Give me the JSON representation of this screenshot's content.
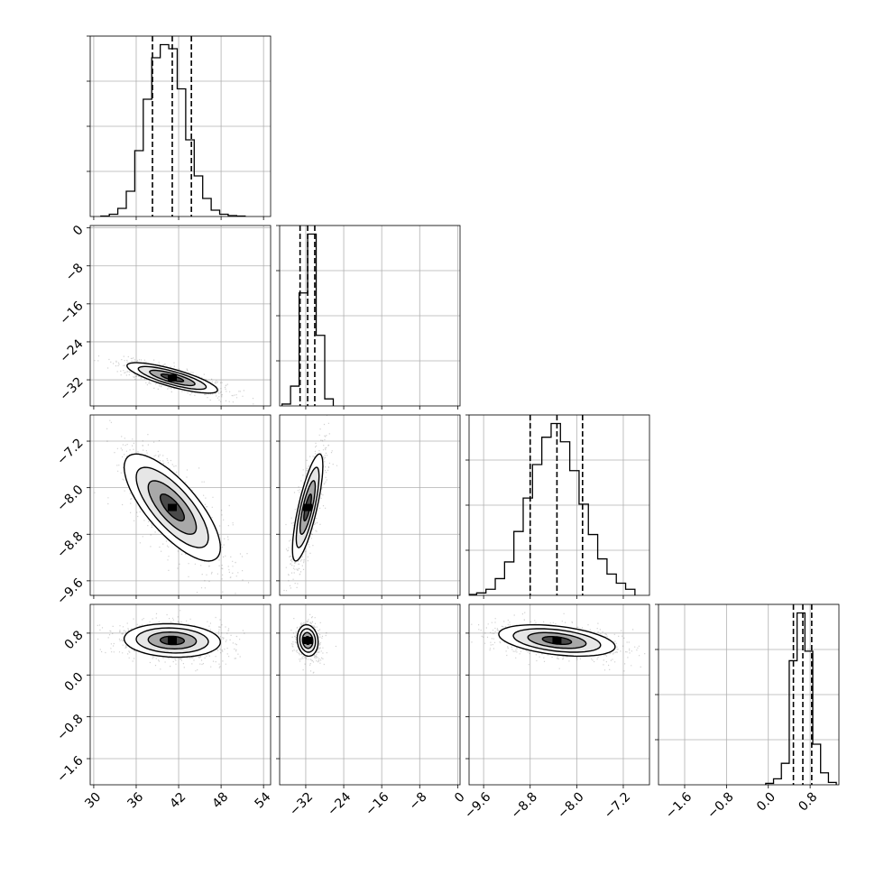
{
  "chart_data": {
    "type": "corner",
    "colors": {
      "line": "#000000",
      "grid": "#b0b0b0",
      "points": "#000000",
      "fill_dark": "#000000",
      "fill_light": "#ffffff"
    },
    "grid": true,
    "parameters": [
      {
        "range": [
          29.5,
          55.0
        ],
        "ticks": [
          30,
          36,
          42,
          48,
          54
        ],
        "tick_labels": [
          "30",
          "36",
          "42",
          "48",
          "54"
        ],
        "quantiles": [
          38.3,
          41.1,
          43.8
        ]
      },
      {
        "range": [
          -37.5,
          0.5
        ],
        "ticks": [
          0,
          -8,
          -16,
          -24,
          -32
        ],
        "tick_labels": [
          "0",
          "−8",
          "−16",
          "−24",
          "−32"
        ],
        "quantiles": [
          -33.2,
          -31.6,
          -30.1
        ]
      },
      {
        "range": [
          -9.85,
          -6.75
        ],
        "ticks": [
          -7.2,
          -8.0,
          -8.8,
          -9.6
        ],
        "tick_labels": [
          "−7.2",
          "−8.0",
          "−8.8",
          "−9.6"
        ],
        "quantiles": [
          -8.8,
          -8.34,
          -7.9
        ]
      },
      {
        "range": [
          -2.1,
          1.35
        ],
        "ticks": [
          0.8,
          0.0,
          -0.8,
          -1.6
        ],
        "tick_labels": [
          "0.8",
          "0.0",
          "−0.8",
          "−1.6"
        ],
        "quantiles": [
          0.48,
          0.66,
          0.83
        ]
      }
    ],
    "histograms": [
      {
        "param": 0,
        "edges": [
          31.0,
          32.2,
          33.4,
          34.6,
          35.8,
          37.0,
          38.2,
          39.4,
          40.6,
          41.8,
          43.0,
          44.2,
          45.4,
          46.6,
          47.8,
          49.0,
          50.2,
          51.4
        ],
        "counts": [
          1,
          5,
          18,
          56,
          146,
          260,
          352,
          381,
          372,
          283,
          170,
          90,
          40,
          14,
          5,
          2,
          1
        ]
      },
      {
        "param": 1,
        "edges": [
          -37.0,
          -35.2,
          -33.4,
          -31.6,
          -29.8,
          -28.0,
          -26.2
        ],
        "counts": [
          8,
          84,
          480,
          730,
          300,
          30
        ]
      },
      {
        "param": 2,
        "edges": [
          -9.88,
          -9.72,
          -9.56,
          -9.4,
          -9.24,
          -9.08,
          -8.92,
          -8.76,
          -8.6,
          -8.44,
          -8.28,
          -8.12,
          -7.96,
          -7.8,
          -7.64,
          -7.48,
          -7.32,
          -7.16,
          -7.0
        ],
        "counts": [
          3,
          8,
          20,
          55,
          110,
          210,
          320,
          430,
          520,
          565,
          505,
          410,
          300,
          200,
          120,
          70,
          40,
          20
        ]
      },
      {
        "param": 3,
        "edges": [
          -0.05,
          0.1,
          0.25,
          0.4,
          0.55,
          0.7,
          0.85,
          1.0,
          1.15,
          1.3
        ],
        "counts": [
          6,
          25,
          90,
          520,
          720,
          560,
          170,
          50,
          10
        ]
      }
    ],
    "pairs": [
      {
        "x": 0,
        "y": 1,
        "mean": [
          41.1,
          -31.6
        ],
        "sd": [
          3.2,
          1.6
        ],
        "rho": -0.8
      },
      {
        "x": 0,
        "y": 2,
        "mean": [
          41.1,
          -8.34
        ],
        "sd": [
          3.4,
          0.46
        ],
        "rho": -0.75
      },
      {
        "x": 1,
        "y": 2,
        "mean": [
          -31.6,
          -8.34
        ],
        "sd": [
          1.6,
          0.46
        ],
        "rho": 0.78
      },
      {
        "x": 0,
        "y": 3,
        "mean": [
          41.1,
          0.66
        ],
        "sd": [
          3.4,
          0.16
        ],
        "rho": -0.1
      },
      {
        "x": 1,
        "y": 3,
        "mean": [
          -31.6,
          0.66
        ],
        "sd": [
          1.1,
          0.15
        ],
        "rho": -0.1
      },
      {
        "x": 2,
        "y": 3,
        "mean": [
          -8.34,
          0.66
        ],
        "sd": [
          0.5,
          0.15
        ],
        "rho": -0.4
      }
    ],
    "contour_levels": [
      0.5,
      1.0,
      1.5,
      2.0
    ]
  }
}
